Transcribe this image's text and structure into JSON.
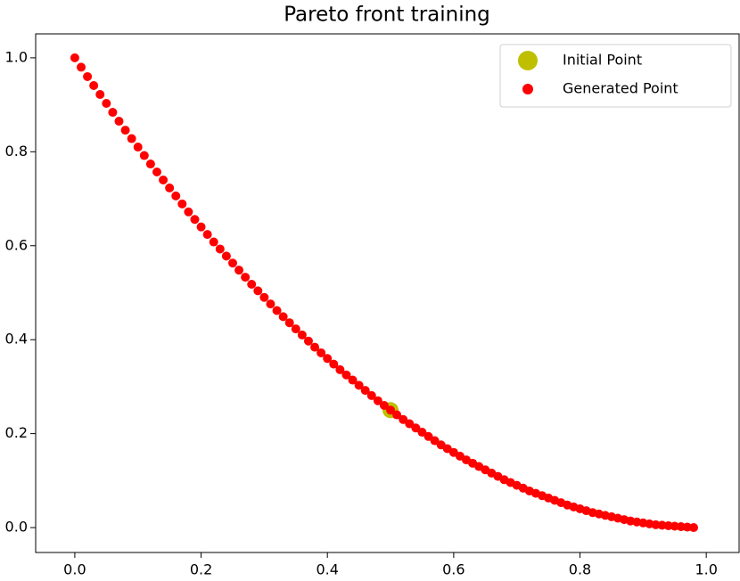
{
  "chart_data": {
    "type": "scatter",
    "title": "Pareto front training",
    "xlim": [
      -0.062,
      1.052
    ],
    "ylim": [
      -0.053,
      1.051
    ],
    "xticks": [
      {
        "value": 0,
        "label": "0.0"
      },
      {
        "value": 0.2,
        "label": "0.2"
      },
      {
        "value": 0.4,
        "label": "0.4"
      },
      {
        "value": 0.6,
        "label": "0.6"
      },
      {
        "value": 0.8,
        "label": "0.8"
      },
      {
        "value": 1,
        "label": "1.0"
      }
    ],
    "yticks": [
      {
        "value": 0,
        "label": "0.0"
      },
      {
        "value": 0.2,
        "label": "0.2"
      },
      {
        "value": 0.4,
        "label": "0.4"
      },
      {
        "value": 0.6,
        "label": "0.6"
      },
      {
        "value": 0.8,
        "label": "0.8"
      },
      {
        "value": 1,
        "label": "1.0"
      }
    ],
    "legend": "upper right",
    "series": [
      {
        "name": "Initial Point",
        "color": "#bfbf00",
        "x": [
          0.5
        ],
        "values": [
          0.25
        ]
      },
      {
        "name": "Generated Point",
        "color": "#ff0000",
        "x": [
          0,
          0.01,
          0.02,
          0.03,
          0.04,
          0.05,
          0.06,
          0.07,
          0.08,
          0.09,
          0.1,
          0.11,
          0.12,
          0.13,
          0.14,
          0.15,
          0.16,
          0.17,
          0.18,
          0.19,
          0.2,
          0.21,
          0.22,
          0.23,
          0.24,
          0.25,
          0.26,
          0.27,
          0.28,
          0.29,
          0.3,
          0.31,
          0.32,
          0.33,
          0.34,
          0.35,
          0.36,
          0.37,
          0.38,
          0.39,
          0.4,
          0.41,
          0.42,
          0.43,
          0.44,
          0.45,
          0.46,
          0.47,
          0.48,
          0.49,
          0.5,
          0.51,
          0.52,
          0.53,
          0.54,
          0.55,
          0.56,
          0.57,
          0.58,
          0.59,
          0.6,
          0.61,
          0.62,
          0.63,
          0.64,
          0.65,
          0.66,
          0.67,
          0.68,
          0.69,
          0.7,
          0.71,
          0.72,
          0.73,
          0.74,
          0.75,
          0.76,
          0.77,
          0.78,
          0.79,
          0.8,
          0.81,
          0.82,
          0.83,
          0.84,
          0.85,
          0.86,
          0.87,
          0.88,
          0.89,
          0.9,
          0.91,
          0.92,
          0.93,
          0.94,
          0.95,
          0.96,
          0.97,
          0.98
        ],
        "values": [
          1,
          0.98,
          0.96,
          0.941,
          0.922,
          0.903,
          0.884,
          0.865,
          0.846,
          0.828,
          0.81,
          0.792,
          0.774,
          0.757,
          0.74,
          0.723,
          0.706,
          0.689,
          0.672,
          0.656,
          0.64,
          0.624,
          0.608,
          0.593,
          0.578,
          0.563,
          0.548,
          0.533,
          0.518,
          0.504,
          0.49,
          0.476,
          0.462,
          0.449,
          0.436,
          0.423,
          0.41,
          0.397,
          0.384,
          0.372,
          0.36,
          0.348,
          0.336,
          0.325,
          0.314,
          0.303,
          0.292,
          0.281,
          0.27,
          0.26,
          0.25,
          0.24,
          0.23,
          0.221,
          0.212,
          0.203,
          0.194,
          0.185,
          0.176,
          0.168,
          0.16,
          0.152,
          0.144,
          0.137,
          0.13,
          0.123,
          0.116,
          0.109,
          0.102,
          0.096,
          0.09,
          0.084,
          0.078,
          0.073,
          0.068,
          0.063,
          0.058,
          0.053,
          0.048,
          0.044,
          0.04,
          0.036,
          0.032,
          0.029,
          0.026,
          0.023,
          0.02,
          0.017,
          0.014,
          0.012,
          0.01,
          0.008,
          0.006,
          0.005,
          0.004,
          0.003,
          0.002,
          0.001,
          0
        ]
      }
    ]
  }
}
